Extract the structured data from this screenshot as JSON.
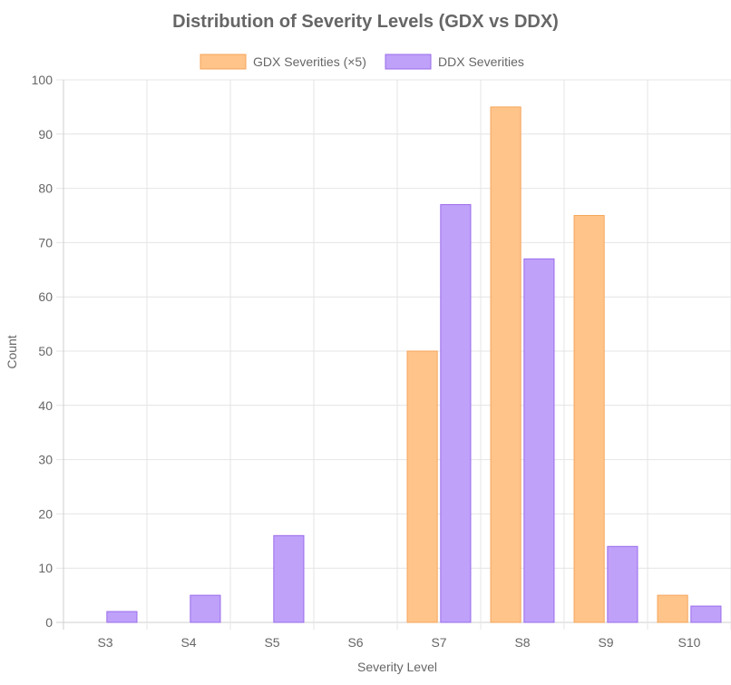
{
  "chart_data": {
    "type": "bar",
    "title": "Distribution of Severity Levels (GDX vs DDX)",
    "xlabel": "Severity Level",
    "ylabel": "Count",
    "ylim": [
      0,
      100
    ],
    "yticks": [
      0,
      10,
      20,
      30,
      40,
      50,
      60,
      70,
      80,
      90,
      100
    ],
    "grid": true,
    "legend_position": "top",
    "categories": [
      "S3",
      "S4",
      "S5",
      "S6",
      "S7",
      "S8",
      "S9",
      "S10"
    ],
    "series": [
      {
        "name": "GDX Severities (×5)",
        "values": [
          0,
          0,
          0,
          0,
          50,
          95,
          75,
          5
        ],
        "fill": "#FFC48A",
        "stroke": "#F5A55A"
      },
      {
        "name": "DDX Severities",
        "values": [
          2,
          5,
          16,
          0,
          77,
          67,
          14,
          3
        ],
        "fill": "#BFA1FA",
        "stroke": "#9A6BEB"
      }
    ]
  }
}
